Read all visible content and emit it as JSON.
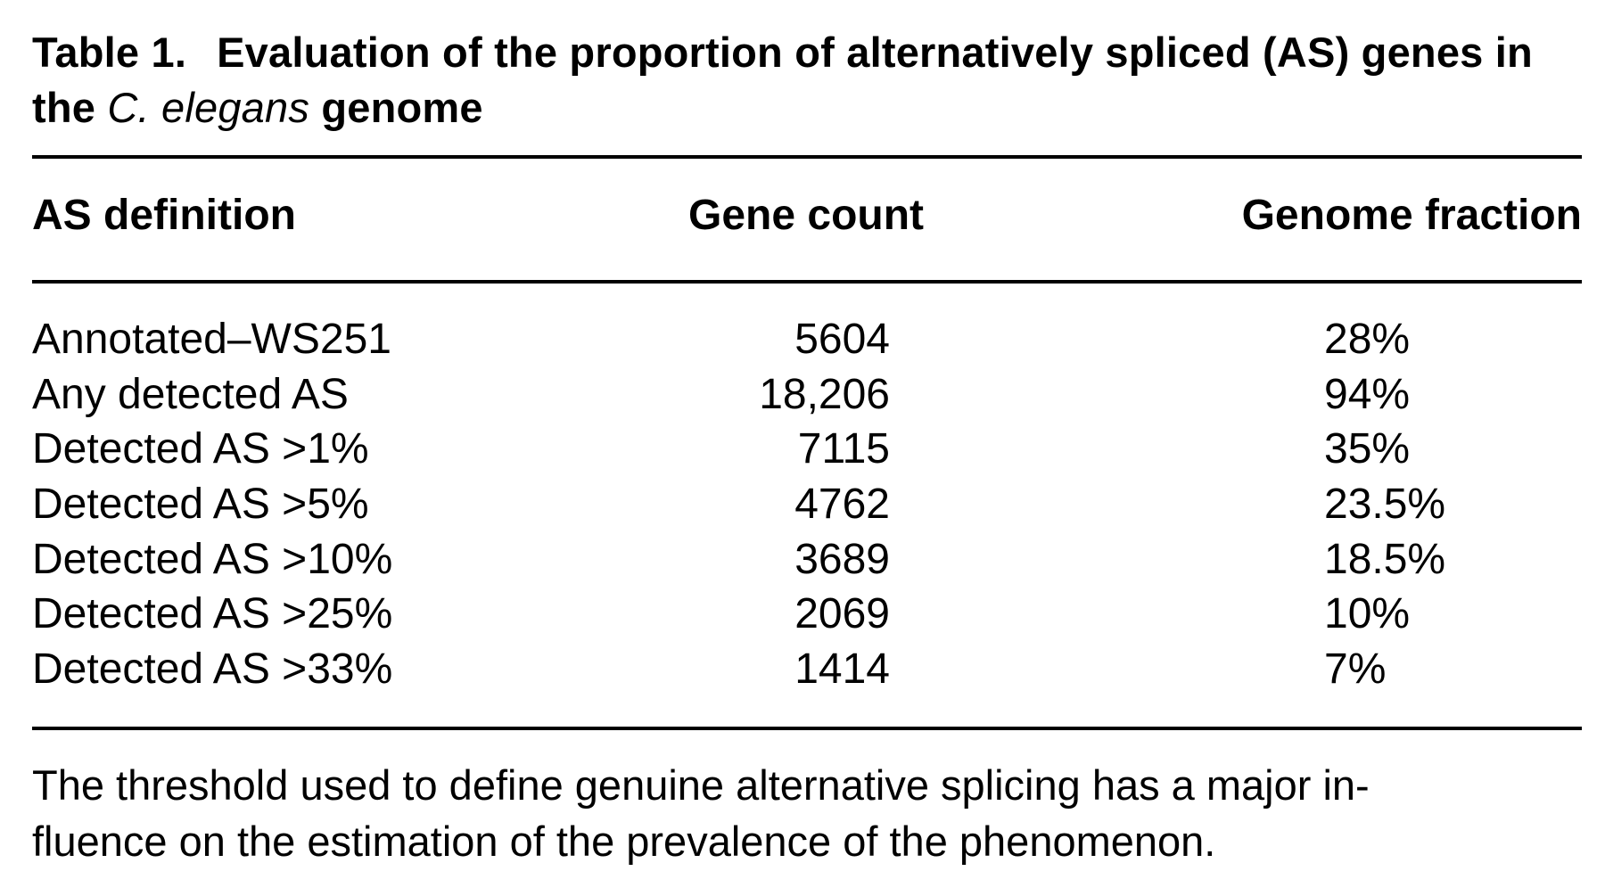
{
  "table": {
    "caption_label": "Table 1.",
    "caption_text_pre": "Evaluation of the proportion of alternatively spliced (AS) genes in the ",
    "caption_species": "C. elegans",
    "caption_text_post": " genome",
    "columns": [
      "AS definition",
      "Gene count",
      "Genome fraction"
    ],
    "rows": [
      {
        "definition": "Annotated–WS251",
        "gene_count": "5604",
        "genome_fraction": "28%"
      },
      {
        "definition": "Any detected AS",
        "gene_count": "18,206",
        "genome_fraction": "94%"
      },
      {
        "definition": "Detected AS >1%",
        "gene_count": "7115",
        "genome_fraction": "35%"
      },
      {
        "definition": "Detected AS >5%",
        "gene_count": "4762",
        "genome_fraction": "23.5%"
      },
      {
        "definition": "Detected AS >10%",
        "gene_count": "3689",
        "genome_fraction": "18.5%"
      },
      {
        "definition": "Detected AS >25%",
        "gene_count": "2069",
        "genome_fraction": "10%"
      },
      {
        "definition": "Detected AS >33%",
        "gene_count": "1414",
        "genome_fraction": "7%"
      }
    ],
    "footnote_line1": "The threshold used to define genuine alternative splicing has a major in-",
    "footnote_line2": "fluence on the estimation of the prevalence of the phenomenon."
  }
}
